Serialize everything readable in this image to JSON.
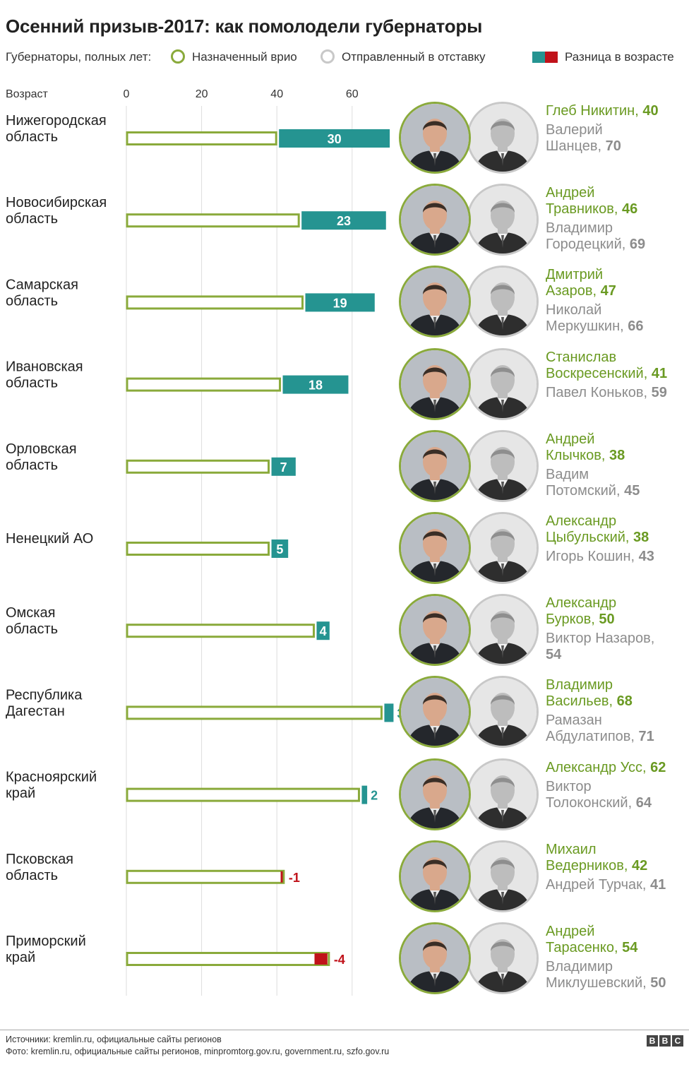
{
  "title": "Осенний призыв-2017: как помолодели губернаторы",
  "legend": {
    "prefix": "Губернаторы, полных лет:",
    "appointed": "Назначенный врио",
    "dismissed": "Отправленный в отставку",
    "difference": "Разница в возрасте"
  },
  "colors": {
    "appointed": "#8aaa3b",
    "dismissed": "#c8c8c8",
    "diff_positive": "#259491",
    "diff_negative": "#c0121a",
    "name_new": "#6a9a22",
    "name_old": "#8c8c8c"
  },
  "chart_data": {
    "type": "bar",
    "orientation": "horizontal",
    "xlabel": "Возраст",
    "xticks": [
      0,
      20,
      40,
      60
    ],
    "xlim": [
      0,
      72
    ],
    "grid": true,
    "categories": [
      "Нижегородская область",
      "Новосибирская область",
      "Самарская область",
      "Ивановская область",
      "Орловская область",
      "Ненецкий АО",
      "Омская область",
      "Республика Дагестан",
      "Красноярский край",
      "Псковская область",
      "Приморский край"
    ],
    "series": [
      {
        "name": "Назначенный врио",
        "values": [
          40,
          46,
          47,
          41,
          38,
          38,
          50,
          68,
          62,
          42,
          54
        ]
      },
      {
        "name": "Отправленный в отставку",
        "values": [
          70,
          69,
          66,
          59,
          45,
          43,
          54,
          71,
          64,
          41,
          50
        ]
      },
      {
        "name": "Разница в возрасте",
        "values": [
          30,
          23,
          19,
          18,
          7,
          5,
          4,
          3,
          2,
          -1,
          -4
        ]
      }
    ]
  },
  "rows": [
    {
      "region": [
        "Нижегородская",
        "область"
      ],
      "diff": "30",
      "new_lines": [
        "Глеб Никитин, "
      ],
      "new_age": "40",
      "old_lines": [
        "Валерий",
        "Шанцев, "
      ],
      "old_age": "70"
    },
    {
      "region": [
        "Новосибирская",
        "область"
      ],
      "diff": "23",
      "new_lines": [
        "Андрей",
        "Травников, "
      ],
      "new_age": "46",
      "old_lines": [
        "Владимир",
        "Городецкий, "
      ],
      "old_age": "69"
    },
    {
      "region": [
        "Самарская",
        "область"
      ],
      "diff": "19",
      "new_lines": [
        "Дмитрий",
        "Азаров, "
      ],
      "new_age": "47",
      "old_lines": [
        "Николай",
        "Меркушкин, "
      ],
      "old_age": "66"
    },
    {
      "region": [
        "Ивановская",
        "область"
      ],
      "diff": "18",
      "new_lines": [
        "Станислав",
        "Воскресенский, "
      ],
      "new_age": "41",
      "old_lines": [
        "Павел Коньков, "
      ],
      "old_age": "59"
    },
    {
      "region": [
        "Орловская",
        "область"
      ],
      "diff": "7",
      "new_lines": [
        "Андрей",
        "Клычков, "
      ],
      "new_age": "38",
      "old_lines": [
        "Вадим",
        "Потомский, "
      ],
      "old_age": "45"
    },
    {
      "region": [
        "Ненецкий АО"
      ],
      "diff": "5",
      "new_lines": [
        "Александр",
        "Цыбульский, "
      ],
      "new_age": "38",
      "old_lines": [
        "Игорь Кошин, "
      ],
      "old_age": "43"
    },
    {
      "region": [
        "Омская",
        "область"
      ],
      "diff": "4",
      "new_lines": [
        "Александр",
        "Бурков, "
      ],
      "new_age": "50",
      "old_lines": [
        "Виктор Назаров,"
      ],
      "old_age": "54"
    },
    {
      "region": [
        "Республика",
        "Дагестан"
      ],
      "diff": "3",
      "new_lines": [
        "Владимир",
        "Васильев, "
      ],
      "new_age": "68",
      "old_lines": [
        "Рамазан",
        "Абдулатипов, "
      ],
      "old_age": "71"
    },
    {
      "region": [
        "Красноярский",
        "край"
      ],
      "diff": "2",
      "new_lines": [
        "Александр Усс, "
      ],
      "new_age": "62",
      "old_lines": [
        "Виктор",
        "Толоконский, "
      ],
      "old_age": "64"
    },
    {
      "region": [
        "Псковская",
        "область"
      ],
      "diff": "-1",
      "new_lines": [
        "Михаил",
        "Ведерников, "
      ],
      "new_age": "42",
      "old_lines": [
        "Андрей Турчак, "
      ],
      "old_age": "41"
    },
    {
      "region": [
        "Приморский",
        "край"
      ],
      "diff": "-4",
      "new_lines": [
        "Андрей",
        "Тарасенко, "
      ],
      "new_age": "54",
      "old_lines": [
        "Владимир",
        "Миклушевский, "
      ],
      "old_age": "50"
    }
  ],
  "footer": {
    "sources": "Источники: kremlin.ru, официальные сайты регионов",
    "photos": "Фото: kremlin.ru, официальные сайты регионов, minpromtorg.gov.ru, government.ru, szfo.gov.ru",
    "logo": [
      "B",
      "B",
      "C"
    ]
  }
}
